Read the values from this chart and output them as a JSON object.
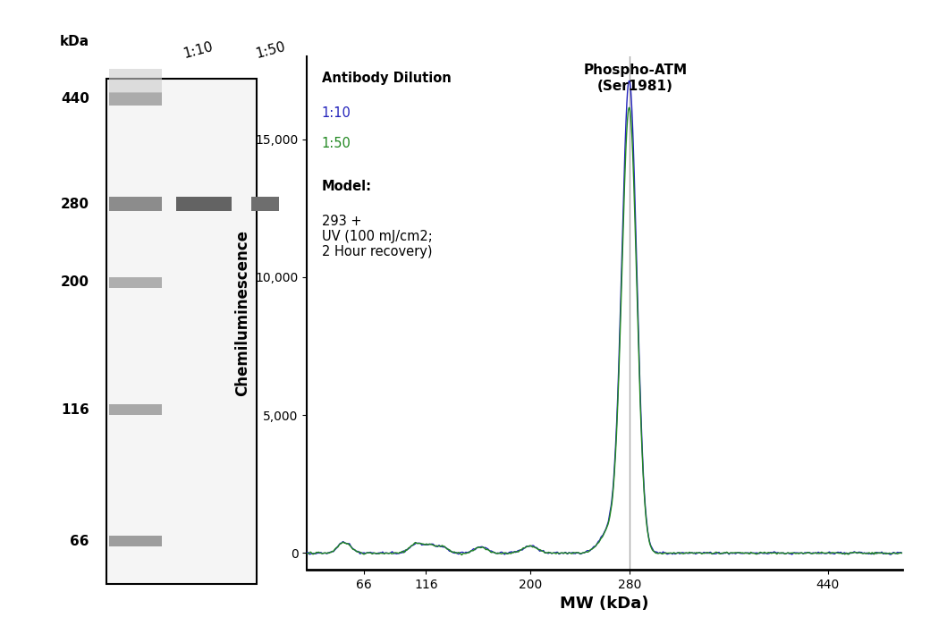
{
  "background_color": "#ffffff",
  "gel_panel": {
    "kda_label": "kDa",
    "column_labels": [
      "1:10",
      "1:50"
    ],
    "kda_ticks": [
      440,
      280,
      200,
      116,
      66
    ],
    "gel_bg": "#f2f2f2",
    "marker_bands": [
      {
        "kda": 440,
        "intensity": 0.6
      },
      {
        "kda": 280,
        "intensity": 0.8
      },
      {
        "kda": 200,
        "intensity": 0.58
      },
      {
        "kda": 116,
        "intensity": 0.62
      },
      {
        "kda": 66,
        "intensity": 0.7
      }
    ],
    "sample_bands": [
      {
        "kda": 280,
        "lane": 1,
        "intensity": 0.73
      },
      {
        "kda": 280,
        "lane": 2,
        "intensity": 0.7
      }
    ],
    "annotation_text": "Phospho-ATM\n(Ser1981)",
    "annotation_kda": 280
  },
  "plot_panel": {
    "title": "Phospho-ATM\n(Ser1981)",
    "xlabel": "MW (kDa)",
    "ylabel": "Chemiluminescence",
    "xlim": [
      20,
      500
    ],
    "ylim": [
      -600,
      18000
    ],
    "yticks": [
      0,
      5000,
      10000,
      15000
    ],
    "ytick_labels": [
      "0",
      "5,000",
      "10,000",
      "15,000"
    ],
    "xticks": [
      66,
      116,
      200,
      280,
      440
    ],
    "vline_x": 280,
    "vline_color": "#aaaaaa",
    "color_1_10": "#2222bb",
    "color_1_50": "#228822",
    "peak_x": 280,
    "peak_height_1_10": 17000,
    "peak_height_1_50": 16000
  }
}
